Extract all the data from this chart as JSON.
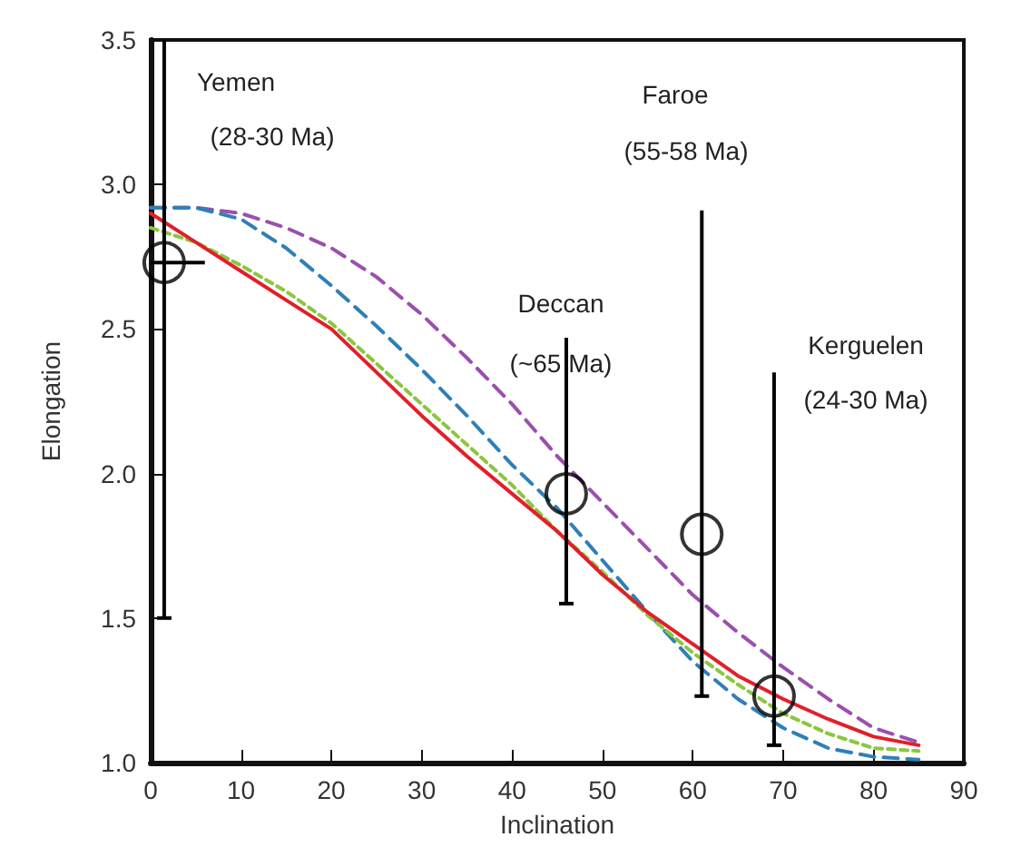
{
  "chart_data": {
    "type": "line",
    "xlabel": "Inclination",
    "ylabel": "Elongation",
    "xlim": [
      0,
      90
    ],
    "xticks": [
      0,
      10,
      20,
      30,
      40,
      50,
      60,
      70,
      80,
      90
    ],
    "ylim": [
      1,
      3.5
    ],
    "yticks": [
      {
        "value": 1,
        "label": "1.0"
      },
      {
        "value": 1.5,
        "label": "1.5"
      },
      {
        "value": 2,
        "label": "2.0"
      },
      {
        "value": 2.5,
        "label": "2.5"
      },
      {
        "value": 3,
        "label": "3.0"
      },
      {
        "value": 3.5,
        "label": "3.5"
      }
    ],
    "grid": false,
    "marker": "none",
    "series": [
      {
        "color": "#9b4fae",
        "line_style": "dashed",
        "x": [
          0,
          5,
          10,
          15,
          20,
          25,
          30,
          35,
          40,
          45,
          50,
          55,
          60,
          65,
          70,
          75,
          80,
          85
        ],
        "values": [
          2.92,
          2.92,
          2.9,
          2.85,
          2.78,
          2.68,
          2.55,
          2.4,
          2.24,
          2.06,
          1.9,
          1.74,
          1.58,
          1.45,
          1.33,
          1.22,
          1.12,
          1.07
        ]
      },
      {
        "color": "#2f7fb8",
        "line_style": "dashed",
        "x": [
          0,
          5,
          10,
          15,
          20,
          25,
          30,
          35,
          40,
          45,
          50,
          55,
          60,
          65,
          70,
          75,
          80,
          85
        ],
        "values": [
          2.92,
          2.92,
          2.88,
          2.78,
          2.65,
          2.51,
          2.36,
          2.2,
          2.03,
          1.88,
          1.7,
          1.52,
          1.35,
          1.22,
          1.12,
          1.05,
          1.02,
          1.01
        ]
      },
      {
        "color": "#8cc63f",
        "line_style": "dotted",
        "x": [
          0,
          5,
          10,
          15,
          20,
          25,
          30,
          35,
          40,
          45,
          50,
          55,
          60,
          65,
          70,
          75,
          80,
          85
        ],
        "values": [
          2.85,
          2.8,
          2.72,
          2.63,
          2.52,
          2.38,
          2.24,
          2.1,
          1.96,
          1.8,
          1.66,
          1.51,
          1.38,
          1.27,
          1.17,
          1.1,
          1.05,
          1.04
        ]
      },
      {
        "color": "#e0202a",
        "line_style": "solid",
        "x": [
          0,
          5,
          10,
          15,
          20,
          25,
          30,
          35,
          40,
          45,
          50,
          55,
          60,
          65,
          70,
          75,
          80,
          85
        ],
        "values": [
          2.9,
          2.8,
          2.7,
          2.6,
          2.5,
          2.35,
          2.2,
          2.06,
          1.93,
          1.8,
          1.65,
          1.52,
          1.41,
          1.3,
          1.22,
          1.15,
          1.09,
          1.06
        ]
      },
      {
        "type": "scatter",
        "color": "#000000",
        "marker": "circle",
        "x": [
          1.5,
          46,
          61,
          69
        ],
        "values": [
          2.73,
          1.93,
          1.79,
          1.23
        ],
        "errors": [
          [
            1.5,
            3.5
          ],
          [
            1.55,
            2.47
          ],
          [
            1.23,
            2.91
          ],
          [
            1.06,
            2.35
          ]
        ],
        "xerrors": [
          [
            0,
            6
          ],
          null,
          null,
          null
        ]
      }
    ],
    "annotations": [
      "Yemen",
      "(28-30 Ma)",
      "Deccan",
      "(~65 Ma)",
      "Faroe",
      "(55-58 Ma)",
      "Kerguelen",
      "(24-30 Ma)"
    ]
  }
}
